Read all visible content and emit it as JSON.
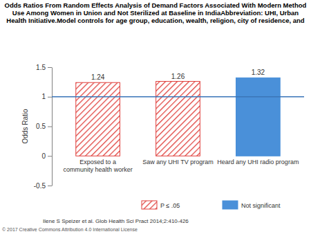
{
  "chart_data": {
    "type": "bar",
    "title": [
      "Odds Ratios From Random Effects Analysis of Demand Factors Associated With Modern Method",
      "Use Among Women in Union and Not Sterilized at Baseline in IndiaAbbreviation: UHI, Urban",
      "Health Initiative.Model controls for age group, education, wealth, religion, city of residence, and"
    ],
    "y_label": "Odds Ratio",
    "categories": [
      "Exposed to a\ncommunity health worker",
      "Saw any UHI TV program",
      "Heard any UHI radio program"
    ],
    "series": [
      {
        "name": "P ≤ .05",
        "color": "#e0403c",
        "values": [
          1.24,
          1.26,
          null
        ]
      },
      {
        "name": "Not significant",
        "color": "#4a90d9",
        "values": [
          null,
          null,
          1.32
        ]
      }
    ],
    "reference_line": 1,
    "ylim": [
      -0.5,
      1.5
    ],
    "yticks": [
      -0.5,
      0,
      0.5,
      1,
      1.5
    ],
    "data_labels": true,
    "legend": "bottom",
    "citation": "Ilene S Speizer et al. Glob Health Sci Pract 2014;2:410-426",
    "copyright": "© 2017 Creative Commons Attribution 4.0 International License"
  }
}
